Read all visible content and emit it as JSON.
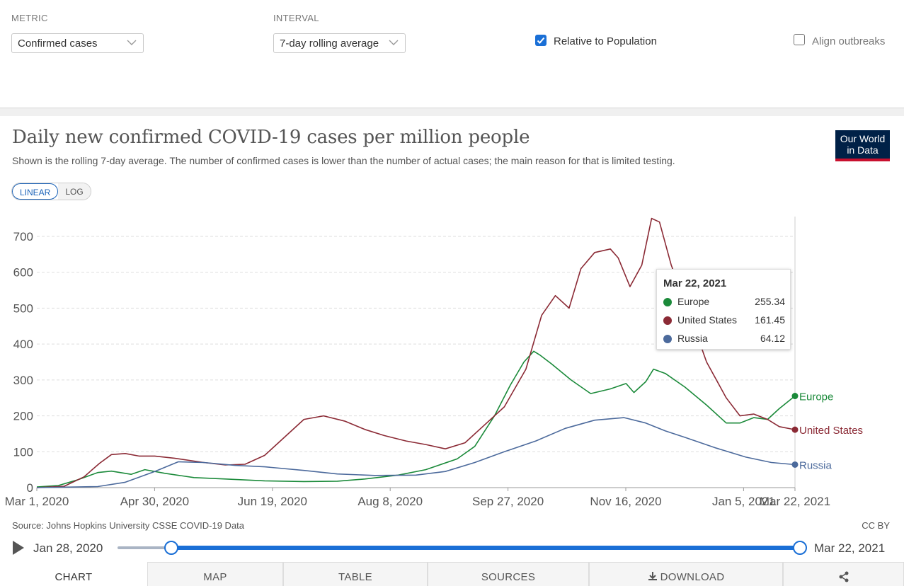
{
  "controls": {
    "metric_label": "METRIC",
    "metric_value": "Confirmed cases",
    "interval_label": "INTERVAL",
    "interval_value": "7-day rolling average",
    "relative_label": "Relative to Population",
    "relative_checked": true,
    "align_label": "Align outbreaks",
    "align_checked": false
  },
  "header": {
    "title": "Daily new confirmed COVID-19 cases per million people",
    "subtitle": "Shown is the rolling 7-day average. The number of confirmed cases is lower than the number of actual cases; the main reason for that is limited testing.",
    "logo_line1": "Our World",
    "logo_line2": "in Data"
  },
  "scale": {
    "linear": "LINEAR",
    "log": "LOG",
    "selected": "LINEAR"
  },
  "colors": {
    "europe": "#1b8a3a",
    "united_states": "#8b2a35",
    "russia": "#4c6a9c",
    "accent": "#1a6fd6"
  },
  "chart_data": {
    "type": "line",
    "title": "Daily new confirmed COVID-19 cases per million people",
    "xlabel": "",
    "ylabel": "",
    "x_tick_labels": [
      "Mar 1, 2020",
      "Apr 30, 2020",
      "Jun 19, 2020",
      "Aug 8, 2020",
      "Sep 27, 2020",
      "Nov 16, 2020",
      "Jan 5, 2021",
      "Mar 22, 2021"
    ],
    "x_range": [
      "2020-03-01",
      "2021-03-22"
    ],
    "y_ticks": [
      0,
      100,
      200,
      300,
      400,
      500,
      600,
      700
    ],
    "ylim": [
      0,
      760
    ],
    "grid": true,
    "series": [
      {
        "name": "Europe",
        "color": "#1b8a3a",
        "points": [
          [
            "2020-03-01",
            2
          ],
          [
            "2020-03-12",
            6
          ],
          [
            "2020-03-22",
            22
          ],
          [
            "2020-04-01",
            42
          ],
          [
            "2020-04-08",
            46
          ],
          [
            "2020-04-18",
            37
          ],
          [
            "2020-04-25",
            50
          ],
          [
            "2020-05-05",
            40
          ],
          [
            "2020-05-20",
            28
          ],
          [
            "2020-06-05",
            24
          ],
          [
            "2020-06-25",
            19
          ],
          [
            "2020-07-15",
            17
          ],
          [
            "2020-08-01",
            18
          ],
          [
            "2020-08-15",
            24
          ],
          [
            "2020-09-01",
            35
          ],
          [
            "2020-09-15",
            50
          ],
          [
            "2020-10-01",
            80
          ],
          [
            "2020-10-10",
            115
          ],
          [
            "2020-10-20",
            200
          ],
          [
            "2020-10-28",
            285
          ],
          [
            "2020-11-04",
            350
          ],
          [
            "2020-11-09",
            380
          ],
          [
            "2020-11-12",
            370
          ],
          [
            "2020-11-18",
            345
          ],
          [
            "2020-11-28",
            300
          ],
          [
            "2020-12-08",
            262
          ],
          [
            "2020-12-18",
            275
          ],
          [
            "2020-12-26",
            290
          ],
          [
            "2020-12-30",
            265
          ],
          [
            "2021-01-05",
            295
          ],
          [
            "2021-01-09",
            330
          ],
          [
            "2021-01-15",
            318
          ],
          [
            "2021-01-25",
            280
          ],
          [
            "2021-02-05",
            230
          ],
          [
            "2021-02-15",
            180
          ],
          [
            "2021-02-22",
            180
          ],
          [
            "2021-03-01",
            195
          ],
          [
            "2021-03-08",
            190
          ],
          [
            "2021-03-14",
            220
          ],
          [
            "2021-03-22",
            255.34
          ]
        ]
      },
      {
        "name": "United States",
        "color": "#8b2a35",
        "points": [
          [
            "2020-03-01",
            0
          ],
          [
            "2020-03-15",
            4
          ],
          [
            "2020-03-25",
            30
          ],
          [
            "2020-04-02",
            68
          ],
          [
            "2020-04-08",
            92
          ],
          [
            "2020-04-15",
            95
          ],
          [
            "2020-04-22",
            88
          ],
          [
            "2020-04-30",
            88
          ],
          [
            "2020-05-10",
            82
          ],
          [
            "2020-05-25",
            70
          ],
          [
            "2020-06-05",
            63
          ],
          [
            "2020-06-15",
            65
          ],
          [
            "2020-06-25",
            90
          ],
          [
            "2020-07-05",
            140
          ],
          [
            "2020-07-15",
            190
          ],
          [
            "2020-07-25",
            200
          ],
          [
            "2020-08-05",
            185
          ],
          [
            "2020-08-15",
            162
          ],
          [
            "2020-08-25",
            145
          ],
          [
            "2020-09-05",
            130
          ],
          [
            "2020-09-15",
            120
          ],
          [
            "2020-09-25",
            108
          ],
          [
            "2020-10-05",
            125
          ],
          [
            "2020-10-15",
            175
          ],
          [
            "2020-10-25",
            225
          ],
          [
            "2020-11-05",
            330
          ],
          [
            "2020-11-13",
            480
          ],
          [
            "2020-11-20",
            535
          ],
          [
            "2020-11-27",
            500
          ],
          [
            "2020-12-03",
            610
          ],
          [
            "2020-12-10",
            655
          ],
          [
            "2020-12-18",
            665
          ],
          [
            "2020-12-22",
            640
          ],
          [
            "2020-12-28",
            560
          ],
          [
            "2021-01-03",
            620
          ],
          [
            "2021-01-08",
            750
          ],
          [
            "2021-01-12",
            740
          ],
          [
            "2021-01-18",
            620
          ],
          [
            "2021-01-25",
            520
          ],
          [
            "2021-02-05",
            350
          ],
          [
            "2021-02-15",
            250
          ],
          [
            "2021-02-22",
            200
          ],
          [
            "2021-03-01",
            205
          ],
          [
            "2021-03-08",
            190
          ],
          [
            "2021-03-14",
            170
          ],
          [
            "2021-03-22",
            161.45
          ]
        ]
      },
      {
        "name": "Russia",
        "color": "#4c6a9c",
        "points": [
          [
            "2020-03-01",
            0
          ],
          [
            "2020-04-01",
            3
          ],
          [
            "2020-04-15",
            15
          ],
          [
            "2020-04-30",
            45
          ],
          [
            "2020-05-12",
            72
          ],
          [
            "2020-05-25",
            70
          ],
          [
            "2020-06-10",
            62
          ],
          [
            "2020-06-25",
            58
          ],
          [
            "2020-07-15",
            48
          ],
          [
            "2020-08-01",
            38
          ],
          [
            "2020-08-20",
            34
          ],
          [
            "2020-09-10",
            35
          ],
          [
            "2020-09-25",
            45
          ],
          [
            "2020-10-10",
            70
          ],
          [
            "2020-10-25",
            100
          ],
          [
            "2020-11-10",
            130
          ],
          [
            "2020-11-25",
            165
          ],
          [
            "2020-12-10",
            188
          ],
          [
            "2020-12-25",
            195
          ],
          [
            "2021-01-05",
            180
          ],
          [
            "2021-01-15",
            158
          ],
          [
            "2021-01-25",
            140
          ],
          [
            "2021-02-10",
            110
          ],
          [
            "2021-02-25",
            85
          ],
          [
            "2021-03-10",
            70
          ],
          [
            "2021-03-22",
            64.12
          ]
        ]
      }
    ]
  },
  "tooltip": {
    "date": "Mar 22, 2021",
    "rows": [
      {
        "name": "Europe",
        "value": "255.34"
      },
      {
        "name": "United States",
        "value": "161.45"
      },
      {
        "name": "Russia",
        "value": "64.12"
      }
    ]
  },
  "footer": {
    "source": "Source: Johns Hopkins University CSSE COVID-19 Data",
    "license": "CC BY",
    "timeline_start": "Jan 28, 2020",
    "timeline_end": "Mar 22, 2021"
  },
  "tabs": [
    "CHART",
    "MAP",
    "TABLE",
    "SOURCES",
    "DOWNLOAD"
  ],
  "icons": {
    "play": "play-icon",
    "download": "download-icon",
    "share": "share-icon",
    "chevron": "chevron-down-icon"
  }
}
